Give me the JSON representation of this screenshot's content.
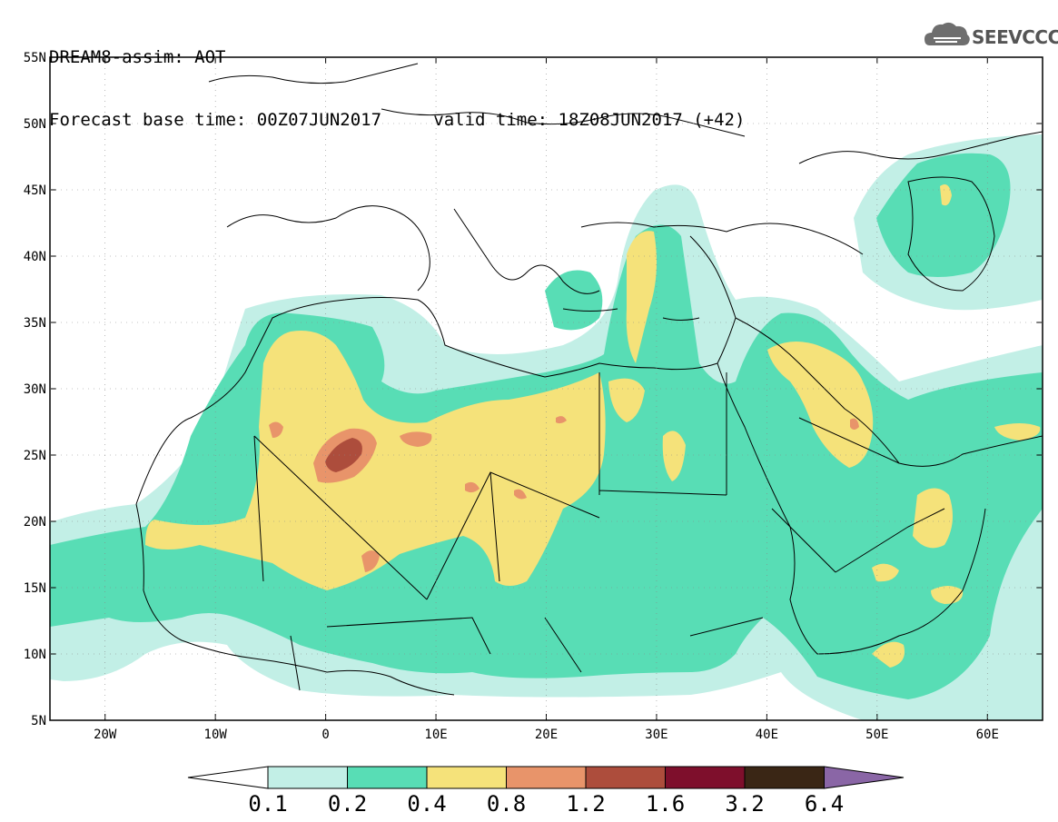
{
  "header": {
    "title": "DREAM8-assim: AOT",
    "base_time_label": "Forecast base time: 00Z07JUN2017",
    "valid_time_label": "valid time: 18Z08JUN2017 (+42)"
  },
  "logo": {
    "text": "SEEVCCC",
    "icon": "cloud-icon"
  },
  "map": {
    "lon_range": [
      -25,
      65
    ],
    "lat_range": [
      5,
      55
    ],
    "lat_ticks": [
      "55N",
      "50N",
      "45N",
      "40N",
      "35N",
      "30N",
      "25N",
      "20N",
      "15N",
      "10N",
      "5N"
    ],
    "lon_ticks": [
      "20W",
      "10W",
      "0",
      "10E",
      "20E",
      "30E",
      "40E",
      "50E",
      "60E"
    ]
  },
  "colorbar": {
    "labels": [
      "0.1",
      "0.2",
      "0.4",
      "0.8",
      "1.2",
      "1.6",
      "3.2",
      "6.4"
    ],
    "colors": [
      "#ffffff",
      "#c2efe6",
      "#58ddb5",
      "#f5e27a",
      "#e8946a",
      "#ad4d3c",
      "#7e0f2c",
      "#3a2615",
      "#8a66a6"
    ]
  },
  "colors": {
    "level1": "#c2efe6",
    "level2": "#58ddb5",
    "level3": "#f5e27a",
    "level4": "#e8946a",
    "level5": "#ad4d3c",
    "level6": "#7e0f2c"
  }
}
